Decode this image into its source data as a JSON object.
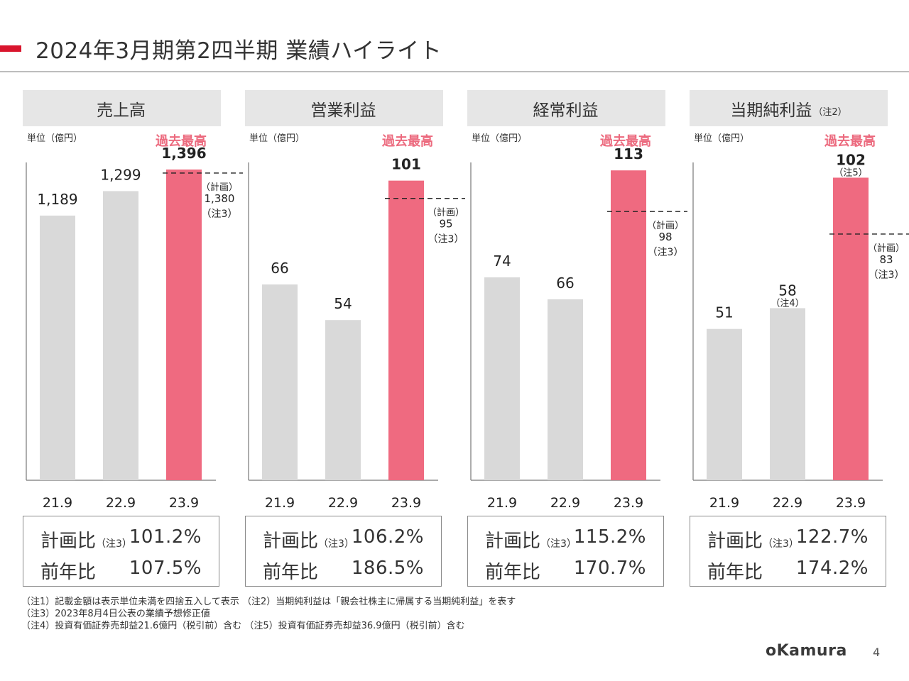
{
  "page": {
    "title": "2024年3月期第2四半期  業績ハイライト",
    "accent_color": "#d9152d",
    "footnotes": [
      "（注1）記載金額は表示単位未満を四捨五入して表示  （注2）当期純利益は「親会社株主に帰属する当期純利益」を表す",
      "（注3）2023年8月4日公表の業績予想修正値",
      "（注4）投資有価証券売却益21.6億円（税引前）含む （注5）投資有価証券売却益36.9億円（税引前）含む"
    ],
    "logo": "oKamura",
    "page_number": "4"
  },
  "chart_data": [
    {
      "type": "bar",
      "title": "売上高",
      "title_note": "",
      "unit": "単位（億円）",
      "record_label": "過去最高",
      "categories": [
        "21.9",
        "22.9",
        "23.9"
      ],
      "values": [
        1189,
        1299,
        1396
      ],
      "value_labels": [
        "1,189",
        "1,299",
        "1,396"
      ],
      "value_notes": [
        "",
        "",
        ""
      ],
      "plan": {
        "value": 1380,
        "label_top": "（計画）",
        "label_value": "1,380",
        "label_note": "（注3）"
      },
      "ylim": [
        0,
        1466
      ],
      "colors": {
        "past": "#d9d9d9",
        "current": "#ef6a80"
      },
      "summary": {
        "plan_ratio_label": "計画比",
        "plan_ratio_note": "（注3）",
        "plan_ratio": "101.2%",
        "yoy_label": "前年比",
        "yoy": "107.5%"
      }
    },
    {
      "type": "bar",
      "title": "営業利益",
      "title_note": "",
      "unit": "単位（億円）",
      "record_label": "過去最高",
      "categories": [
        "21.9",
        "22.9",
        "23.9"
      ],
      "values": [
        66,
        54,
        101
      ],
      "value_labels": [
        "66",
        "54",
        "101"
      ],
      "value_notes": [
        "",
        "",
        ""
      ],
      "plan": {
        "value": 95,
        "label_top": "（計画）",
        "label_value": "95",
        "label_note": "（注3）"
      },
      "ylim": [
        0,
        110
      ],
      "colors": {
        "past": "#d9d9d9",
        "current": "#ef6a80"
      },
      "summary": {
        "plan_ratio_label": "計画比",
        "plan_ratio_note": "（注3）",
        "plan_ratio": "106.2%",
        "yoy_label": "前年比",
        "yoy": "186.5%"
      }
    },
    {
      "type": "bar",
      "title": "経常利益",
      "title_note": "",
      "unit": "単位（億円）",
      "record_label": "過去最高",
      "categories": [
        "21.9",
        "22.9",
        "23.9"
      ],
      "values": [
        74,
        66,
        113
      ],
      "value_labels": [
        "74",
        "66",
        "113"
      ],
      "value_notes": [
        "",
        "",
        ""
      ],
      "plan": {
        "value": 98,
        "label_top": "（計画）",
        "label_value": "98",
        "label_note": "（注3）"
      },
      "ylim": [
        0,
        119
      ],
      "colors": {
        "past": "#d9d9d9",
        "current": "#ef6a80"
      },
      "summary": {
        "plan_ratio_label": "計画比",
        "plan_ratio_note": "（注3）",
        "plan_ratio": "115.2%",
        "yoy_label": "前年比",
        "yoy": "170.7%"
      }
    },
    {
      "type": "bar",
      "title": "当期純利益",
      "title_note": "（注2）",
      "unit": "単位（億円）",
      "record_label": "過去最高",
      "categories": [
        "21.9",
        "22.9",
        "23.9"
      ],
      "values": [
        51,
        58,
        102
      ],
      "value_labels": [
        "51",
        "58",
        "102"
      ],
      "value_notes": [
        "",
        "（注4）",
        "（注5）"
      ],
      "plan": {
        "value": 83,
        "label_top": "（計画）",
        "label_value": "83",
        "label_note": "（注3）"
      },
      "ylim": [
        0,
        110
      ],
      "colors": {
        "past": "#d9d9d9",
        "current": "#ef6a80"
      },
      "summary": {
        "plan_ratio_label": "計画比",
        "plan_ratio_note": "（注3）",
        "plan_ratio": "122.7%",
        "yoy_label": "前年比",
        "yoy": "174.2%"
      }
    }
  ]
}
